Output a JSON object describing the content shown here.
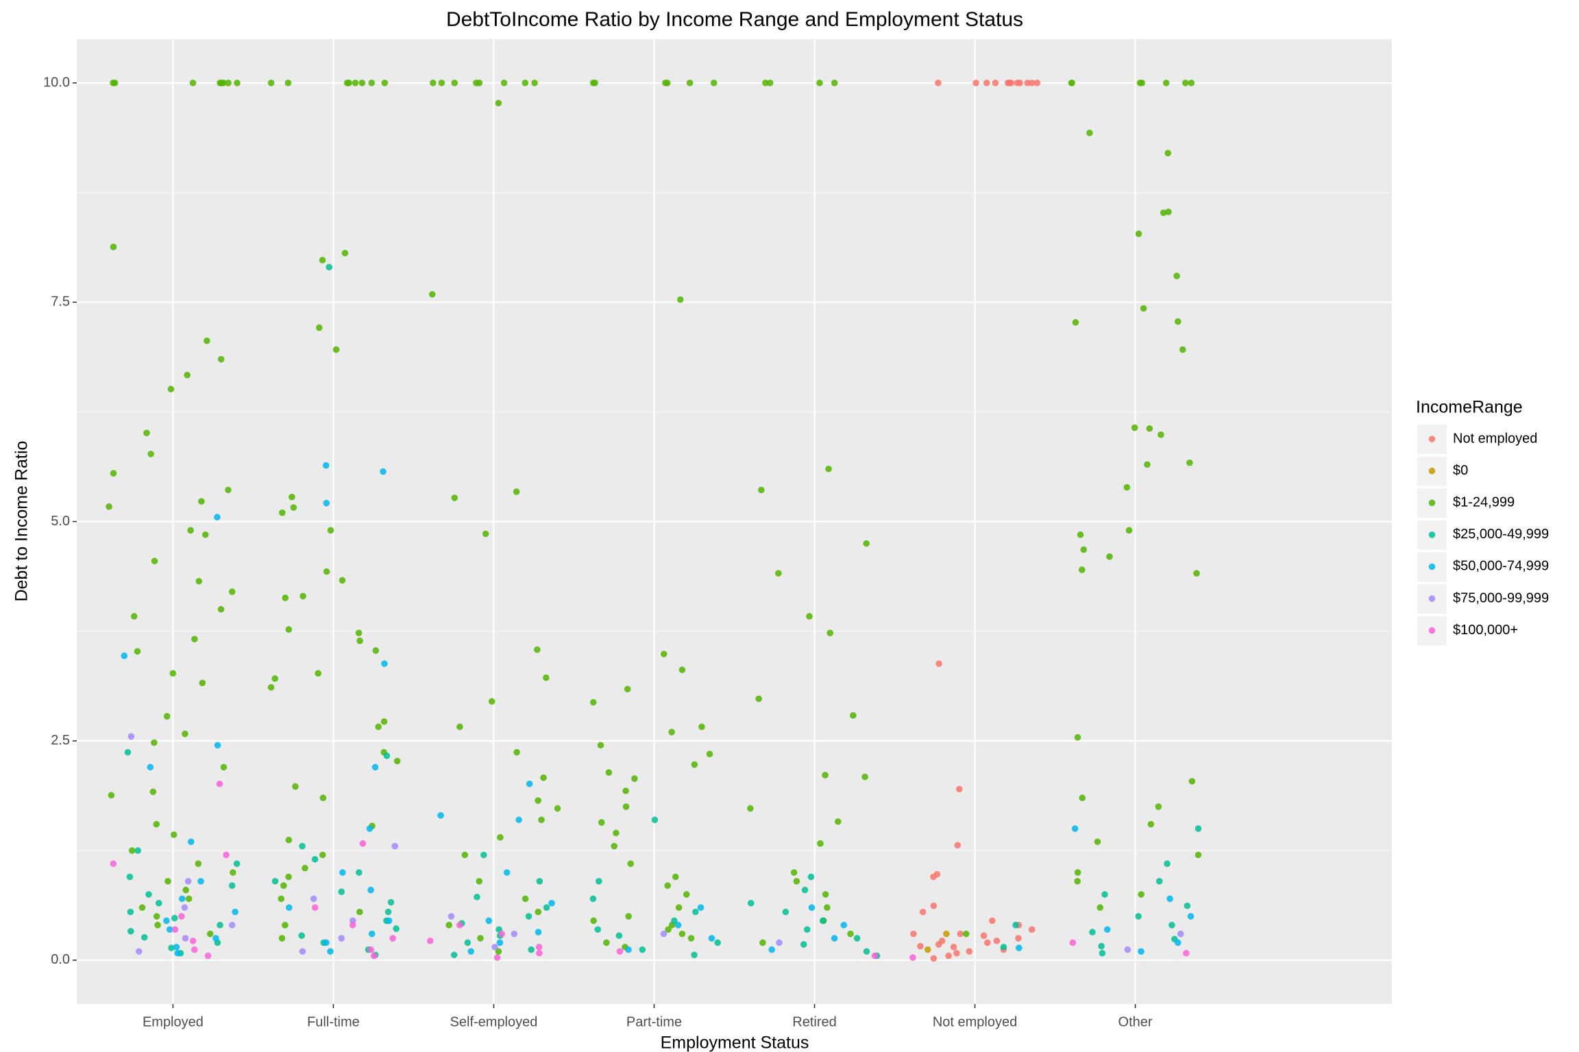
{
  "chart_data": {
    "type": "jitter",
    "title": "DebtToIncome Ratio by Income Range and Employment Status",
    "x_label": "Employment Status",
    "y_label": "Debt to Income Ratio",
    "legend_title": "IncomeRange",
    "legend": "right",
    "grid": true,
    "categories": [
      "Employed",
      "Full-time",
      "Self-employed",
      "Part-time",
      "Retired",
      "Not employed",
      "Other"
    ],
    "ylim": [
      -0.5,
      10.5
    ],
    "yticks": [
      {
        "value": 0,
        "label": "0.0"
      },
      2.5,
      {
        "value": 5,
        "label": "5.0"
      },
      7.5,
      {
        "value": 10,
        "label": "10.0"
      }
    ],
    "series": [
      {
        "name": "Not employed",
        "color": "#F8766D",
        "values": [
          [],
          [],
          [],
          [],
          [],
          [
            10,
            10,
            10,
            10,
            10,
            10,
            10,
            10,
            10,
            10,
            10,
            10,
            3.38,
            1.95,
            1.31,
            0.98,
            0.95,
            0.62,
            0.55,
            0.45,
            0.4,
            0.35,
            0.3,
            0.28,
            0.25,
            0.22,
            0.2,
            0.18,
            0.15,
            0.12,
            0.1,
            0.08,
            0.05,
            0.02,
            0.3,
            0.22,
            0.16
          ],
          []
        ]
      },
      {
        "name": "$0",
        "color": "#C49A00",
        "values": [
          [],
          [],
          [],
          [],
          [],
          [
            0.3,
            0.12
          ],
          []
        ]
      },
      {
        "name": "$1-24,999",
        "color": "#53B400",
        "values": [
          [
            10,
            10,
            10,
            10,
            10,
            10,
            10,
            10,
            8.13,
            7.06,
            6.85,
            6.67,
            6.51,
            6.01,
            5.77,
            5.55,
            5.36,
            5.23,
            5.17,
            4.9,
            4.85,
            4.55,
            4.32,
            4.2,
            4.0,
            3.92,
            3.66,
            3.52,
            3.27,
            3.16,
            2.78,
            2.58,
            2.48,
            2.2,
            1.92,
            1.88,
            1.55,
            1.43,
            1.25,
            1.1,
            1.0,
            0.9,
            0.8,
            0.7,
            0.6,
            0.5,
            0.4,
            0.3
          ],
          [
            10,
            10,
            10,
            10,
            10,
            10,
            10,
            10,
            8.06,
            7.98,
            7.21,
            6.96,
            5.28,
            5.16,
            5.1,
            4.9,
            4.43,
            4.33,
            4.15,
            4.13,
            3.77,
            3.73,
            3.64,
            3.53,
            3.27,
            3.21,
            3.11,
            2.72,
            2.66,
            2.37,
            2.27,
            1.98,
            1.85,
            1.53,
            1.37,
            1.2,
            1.05,
            0.95,
            0.85,
            0.7,
            0.55,
            0.4,
            0.25
          ],
          [
            10,
            10,
            10,
            10,
            10,
            10,
            10,
            10,
            9.77,
            7.59,
            5.34,
            5.27,
            4.86,
            3.54,
            3.22,
            2.95,
            2.66,
            2.37,
            2.08,
            1.82,
            1.73,
            1.6,
            1.4,
            1.2,
            0.9,
            0.7,
            0.55,
            0.4,
            0.25,
            0.1
          ],
          [
            10,
            10,
            10,
            10,
            10,
            10,
            7.53,
            3.49,
            3.31,
            3.09,
            2.94,
            2.66,
            2.6,
            2.45,
            2.35,
            2.23,
            2.14,
            2.07,
            1.93,
            1.75,
            1.57,
            1.45,
            1.3,
            1.1,
            0.95,
            0.85,
            0.75,
            0.6,
            0.5,
            0.45,
            0.4,
            0.35,
            0.3,
            0.25,
            0.2,
            0.15
          ],
          [
            10,
            10,
            10,
            10,
            5.6,
            5.36,
            4.75,
            4.41,
            3.92,
            3.73,
            2.98,
            2.79,
            2.11,
            2.09,
            1.73,
            1.58,
            1.33,
            1.0,
            0.9,
            0.75,
            0.6,
            0.45,
            0.3,
            0.2
          ],
          [
            0.3
          ],
          [
            10,
            10,
            10,
            10,
            10,
            10,
            10,
            9.43,
            9.2,
            8.53,
            8.52,
            8.28,
            7.8,
            7.43,
            7.28,
            7.27,
            6.96,
            6.07,
            6.06,
            5.99,
            5.67,
            5.65,
            5.39,
            4.9,
            4.85,
            4.68,
            4.6,
            4.45,
            4.41,
            2.54,
            2.04,
            1.85,
            1.75,
            1.55,
            1.35,
            1.2,
            1.0,
            0.9,
            0.75,
            0.6
          ]
        ]
      },
      {
        "name": "$25,000-49,999",
        "color": "#00C094",
        "values": [
          [
            2.37,
            1.25,
            1.1,
            0.95,
            0.85,
            0.75,
            0.65,
            0.55,
            0.48,
            0.4,
            0.33,
            0.26,
            0.2,
            0.14,
            0.08
          ],
          [
            7.9,
            2.33,
            1.3,
            1.15,
            1.0,
            0.9,
            0.78,
            0.66,
            0.55,
            0.45,
            0.36,
            0.28,
            0.2,
            0.12,
            0.06
          ],
          [
            1.2,
            0.9,
            0.72,
            0.6,
            0.5,
            0.42,
            0.35,
            0.28,
            0.2,
            0.12,
            0.06
          ],
          [
            1.6,
            0.9,
            0.7,
            0.55,
            0.45,
            0.35,
            0.28,
            0.2,
            0.12,
            0.06
          ],
          [
            0.95,
            0.8,
            0.65,
            0.55,
            0.45,
            0.35,
            0.25,
            0.18,
            0.1,
            0.05
          ],
          [
            0.4,
            0.15
          ],
          [
            1.5,
            1.1,
            0.9,
            0.75,
            0.62,
            0.5,
            0.4,
            0.32,
            0.24,
            0.16,
            0.08
          ]
        ]
      },
      {
        "name": "$50,000-74,999",
        "color": "#00B6EB",
        "values": [
          [
            5.05,
            3.47,
            2.45,
            2.2,
            1.35,
            0.9,
            0.7,
            0.55,
            0.45,
            0.35,
            0.25,
            0.15,
            0.08
          ],
          [
            5.64,
            5.57,
            5.21,
            3.38,
            2.2,
            1.5,
            1.0,
            0.8,
            0.6,
            0.45,
            0.3,
            0.2,
            0.1
          ],
          [
            2.01,
            1.65,
            1.6,
            1.0,
            0.65,
            0.45,
            0.32,
            0.2,
            0.1
          ],
          [
            0.6,
            0.4,
            0.25,
            0.12
          ],
          [
            0.6,
            0.4,
            0.25,
            0.12
          ],
          [
            0.14
          ],
          [
            1.5,
            0.7,
            0.5,
            0.35,
            0.2,
            0.1
          ]
        ]
      },
      {
        "name": "$75,000-99,999",
        "color": "#A58AFF",
        "values": [
          [
            2.55,
            0.9,
            0.6,
            0.4,
            0.25,
            0.1
          ],
          [
            1.3,
            0.7,
            0.45,
            0.25,
            0.1
          ],
          [
            0.5,
            0.3,
            0.15
          ],
          [
            0.3
          ],
          [
            0.2
          ],
          [],
          [
            0.3,
            0.12
          ]
        ]
      },
      {
        "name": "$100,000+",
        "color": "#FB61D7",
        "values": [
          [
            2.01,
            1.2,
            1.1,
            0.5,
            0.35,
            0.22,
            0.12,
            0.05
          ],
          [
            1.33,
            0.6,
            0.4,
            0.25,
            0.12,
            0.05
          ],
          [
            0.4,
            0.3,
            0.22,
            0.15,
            0.08,
            0.03
          ],
          [
            0.1
          ],
          [
            0.05
          ],
          [
            0.03
          ],
          [
            0.2,
            0.08
          ]
        ]
      }
    ]
  }
}
